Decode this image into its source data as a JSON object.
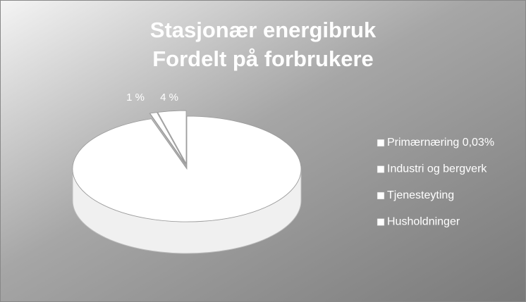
{
  "chart_data": {
    "type": "pie3d",
    "title": [
      "Stasjonær energibruk",
      "Fordelt på forbrukere"
    ],
    "categories": [
      "Primærnæring 0,03%",
      "Industri og bergverk",
      "Tjenesteyting",
      "Husholdninger"
    ],
    "values": [
      0.03,
      1,
      4,
      95
    ],
    "value_labels": [
      null,
      "1 %",
      "4 %",
      null
    ],
    "colors": [
      "#ffffff",
      "#ffffff",
      "#ffffff",
      "#ffffff"
    ],
    "legend": "right"
  }
}
